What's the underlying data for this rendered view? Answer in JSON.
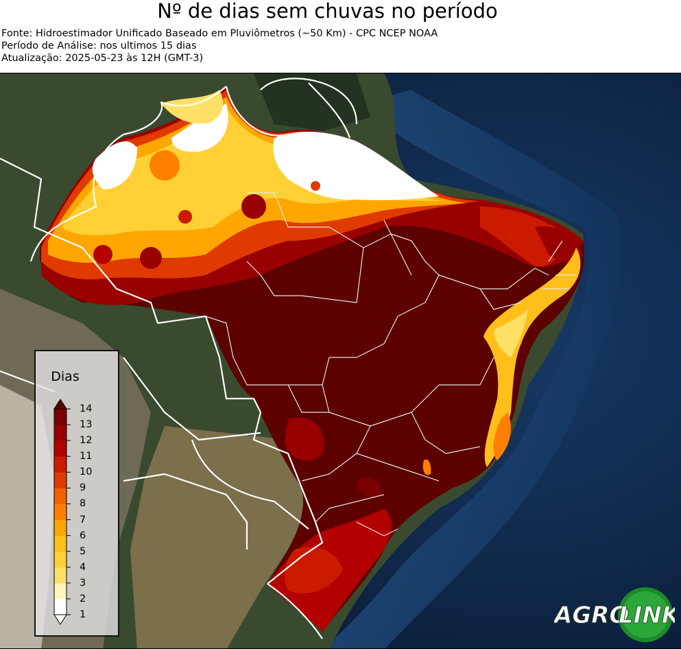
{
  "header": {
    "title": "Nº de dias sem chuvas no período",
    "source": "Fonte: Hidroestimador Unificado Baseado em Pluviômetros (~50 Km) - CPC NCEP NOAA",
    "period": "Período de Análise: nos ultimos 15 dias",
    "update": "Atualização: 2025-05-23 às 12H (GMT-3)"
  },
  "legend": {
    "title": "Dias",
    "ticks": [
      "1",
      "2",
      "3",
      "4",
      "5",
      "6",
      "7",
      "8",
      "9",
      "10",
      "11",
      "12",
      "13",
      "14"
    ],
    "colors": [
      "#ffffff",
      "#fff5b8",
      "#ffe066",
      "#ffd033",
      "#ffbf1a",
      "#ffa600",
      "#ff8000",
      "#f26000",
      "#e03a00",
      "#cc1a00",
      "#b30000",
      "#990000",
      "#7a0000",
      "#5c0000"
    ]
  },
  "logo": {
    "text_a": "AGRO",
    "text_b": "LINK"
  }
}
